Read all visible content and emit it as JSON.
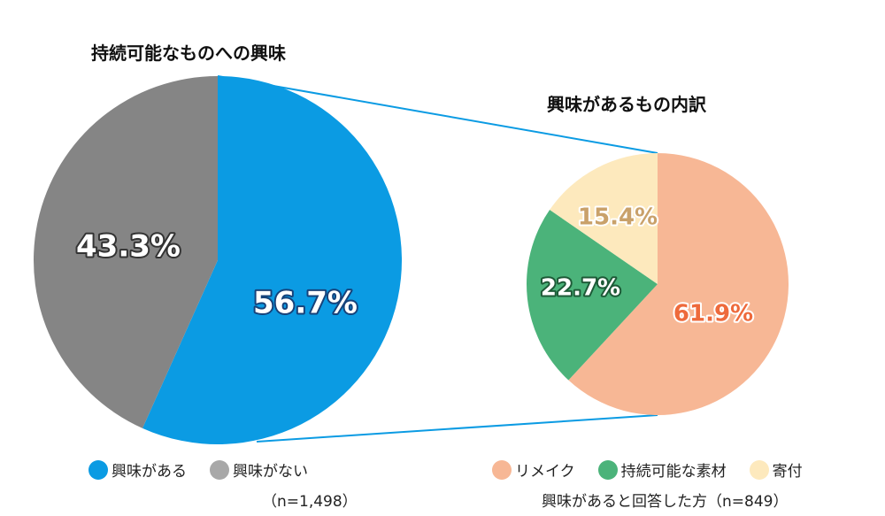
{
  "chart_data": [
    {
      "type": "pie",
      "title": "持続可能なものへの興味",
      "slices": [
        {
          "label": "興味がある",
          "value": 56.7,
          "display": "56.7%",
          "color": "#0b9be3",
          "text_color": "#ffffff",
          "stroke_color": "#16427a"
        },
        {
          "label": "興味がない",
          "value": 43.3,
          "display": "43.3%",
          "color": "#858585",
          "text_color": "#ffffff",
          "stroke_color": "#333333"
        }
      ],
      "note": "（n=1,498）"
    },
    {
      "type": "pie",
      "title": "興味があるもの内訳",
      "slices": [
        {
          "label": "リメイク",
          "value": 61.9,
          "display": "61.9%",
          "color": "#f7b795",
          "text_color": "#ee6a3c",
          "stroke_color": "#ffffff"
        },
        {
          "label": "持続可能な素材",
          "value": 22.7,
          "display": "22.7%",
          "color": "#4bb37a",
          "text_color": "#ffffff",
          "stroke_color": "#1d5a37"
        },
        {
          "label": "寄付",
          "value": 15.4,
          "display": "15.4%",
          "color": "#fde9bd",
          "text_color": "#c9a16a",
          "stroke_color": "#ffffff"
        }
      ],
      "legend_swatch_colors": [
        "#f7b795",
        "#4bb37a",
        "#fde9bd"
      ],
      "note": "興味があると回答した方（n=849）"
    }
  ],
  "legend_left_swatch_colors": [
    "#0b9be3",
    "#a8a8a8"
  ],
  "connector_color": "#0b9be3"
}
